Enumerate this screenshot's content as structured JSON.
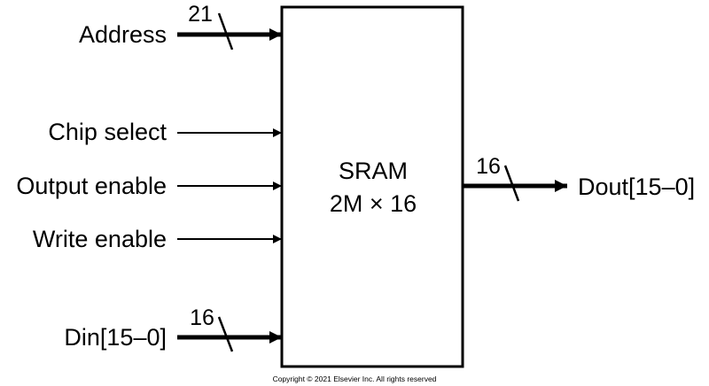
{
  "block": {
    "name": "SRAM",
    "size": "2M × 16"
  },
  "inputs": {
    "address": {
      "label": "Address",
      "width": "21"
    },
    "chip_select": {
      "label": "Chip select"
    },
    "output_enable": {
      "label": "Output enable"
    },
    "write_enable": {
      "label": "Write enable"
    },
    "din": {
      "label": "Din[15–0]",
      "width": "16"
    }
  },
  "outputs": {
    "dout": {
      "label": "Dout[15–0]",
      "width": "16"
    }
  },
  "copyright": "Copyright © 2021 Elsevier Inc. All rights reserved"
}
